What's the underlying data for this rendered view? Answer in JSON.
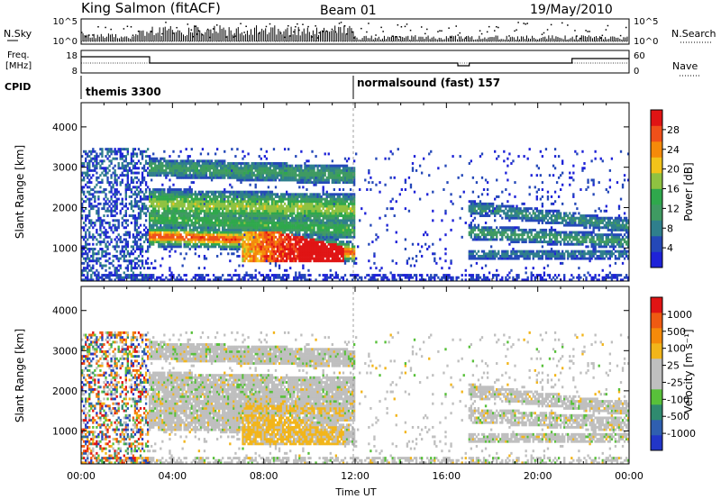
{
  "header": {
    "station": "King Salmon (fitACF)",
    "beam": "Beam 01",
    "date": "19/May/2010"
  },
  "top_panels": {
    "nsky_label": "N.Sky",
    "nsky_ticks": [
      "10^5",
      "10^0"
    ],
    "nsearch_label": "N.Search",
    "nsearch_ticks": [
      "10^5",
      "10^0"
    ],
    "freq_label_1": "Freq.",
    "freq_label_2": "[MHz]",
    "freq_ticks": [
      "18",
      "8"
    ],
    "nave_label": "Nave",
    "nave_ticks": [
      "60",
      "0"
    ],
    "cpid_label": "CPID",
    "cpid_segments": [
      {
        "name": "themis 3300",
        "start_hour": 0
      },
      {
        "name": "normalsound (fast) 157",
        "start_hour": 12
      }
    ]
  },
  "chart_data": [
    {
      "type": "heatmap",
      "title": "",
      "xlabel": "",
      "ylabel": "Slant Range [km]",
      "xlim": [
        0,
        24
      ],
      "ylim": [
        180,
        4600
      ],
      "yticks": [
        "1000",
        "2000",
        "3000",
        "4000"
      ],
      "colorbar": {
        "label": "Power [dB]",
        "ticks": [
          "4",
          "8",
          "12",
          "16",
          "20",
          "24",
          "28"
        ],
        "colors": [
          "#1e22d8",
          "#2448b8",
          "#2f7f8c",
          "#3f9a62",
          "#2fa84c",
          "#8fc241",
          "#f2c31a",
          "#f58a0a",
          "#f0501a",
          "#e01414"
        ]
      }
    },
    {
      "type": "heatmap",
      "title": "",
      "xlabel": "Time UT",
      "ylabel": "Slant Range [km]",
      "xlim": [
        0,
        24
      ],
      "ylim": [
        180,
        4600
      ],
      "yticks": [
        "1000",
        "2000",
        "3000",
        "4000"
      ],
      "xticks": [
        "00:00",
        "04:00",
        "08:00",
        "12:00",
        "16:00",
        "20:00",
        "00:00"
      ],
      "colorbar": {
        "label": "Velocity [m s⁻¹]",
        "ticks": [
          "1000",
          "500",
          "100",
          "25",
          "-25",
          "-100",
          "-500",
          "-1000"
        ],
        "colors": [
          "#2236c8",
          "#2f5fb0",
          "#2f8a6f",
          "#58c03a",
          "#bfbfbf",
          "#bfbfbf",
          "#f2b51a",
          "#f58a0a",
          "#ef5a12",
          "#e01414"
        ]
      }
    }
  ]
}
